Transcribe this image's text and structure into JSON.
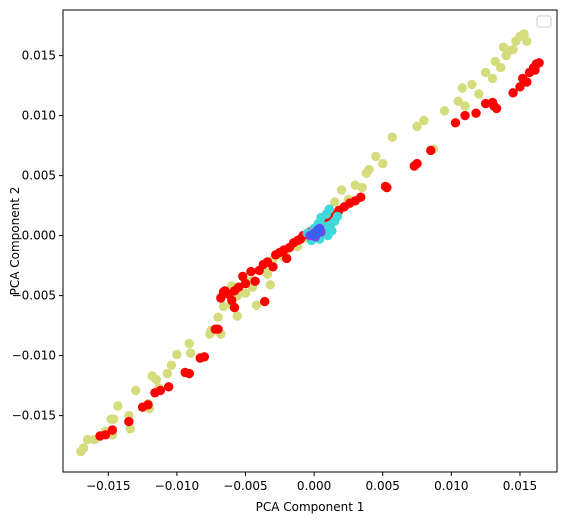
{
  "chart_data": {
    "type": "scatter",
    "xlabel": "PCA Component 1",
    "ylabel": "PCA Component 2",
    "xlim": [
      -0.0183,
      0.0177
    ],
    "ylim": [
      -0.0197,
      0.0188
    ],
    "grid": false,
    "legend": {
      "placement": "top-right",
      "entries": []
    },
    "xticks": [
      -0.015,
      -0.01,
      -0.005,
      0.0,
      0.005,
      0.01,
      0.015
    ],
    "xtick_labels": [
      "−0.015",
      "−0.010",
      "−0.005",
      "0.000",
      "0.005",
      "0.010",
      "0.015"
    ],
    "yticks": [
      -0.015,
      -0.01,
      -0.005,
      0.0,
      0.005,
      0.01,
      0.015
    ],
    "ytick_labels": [
      "−0.015",
      "−0.010",
      "−0.005",
      "0.000",
      "0.005",
      "0.010",
      "0.015"
    ],
    "series": [
      {
        "color": "#d4dc7c",
        "points": [
          [
            -0.017,
            -0.018
          ],
          [
            -0.0168,
            -0.0177
          ],
          [
            -0.0165,
            -0.017
          ],
          [
            -0.016,
            -0.017
          ],
          [
            -0.0152,
            -0.0163
          ],
          [
            -0.0148,
            -0.0153
          ],
          [
            -0.0146,
            -0.0153
          ],
          [
            -0.0147,
            -0.0166
          ],
          [
            -0.0143,
            -0.0142
          ],
          [
            -0.0135,
            -0.015
          ],
          [
            -0.0134,
            -0.0161
          ],
          [
            -0.013,
            -0.0129
          ],
          [
            -0.0121,
            -0.014
          ],
          [
            -0.012,
            -0.0144
          ],
          [
            -0.0118,
            -0.0117
          ],
          [
            -0.0115,
            -0.012
          ],
          [
            -0.0113,
            -0.0127
          ],
          [
            -0.0107,
            -0.0115
          ],
          [
            -0.0104,
            -0.0108
          ],
          [
            -0.01,
            -0.0099
          ],
          [
            -0.0091,
            -0.009
          ],
          [
            -0.009,
            -0.0098
          ],
          [
            -0.0076,
            -0.0082
          ],
          [
            -0.0075,
            -0.0079
          ],
          [
            -0.007,
            -0.0068
          ],
          [
            -0.0068,
            -0.0082
          ],
          [
            -0.0066,
            -0.0059
          ],
          [
            -0.006,
            -0.0058
          ],
          [
            -0.006,
            -0.0042
          ],
          [
            -0.0058,
            -0.006
          ],
          [
            -0.0056,
            -0.005
          ],
          [
            -0.0056,
            -0.0067
          ],
          [
            -0.005,
            -0.0048
          ],
          [
            -0.0048,
            -0.004
          ],
          [
            -0.0046,
            -0.0038
          ],
          [
            -0.0045,
            -0.0043
          ],
          [
            -0.0042,
            -0.0058
          ],
          [
            -0.0036,
            -0.003
          ],
          [
            -0.0034,
            -0.0032
          ],
          [
            -0.0032,
            -0.0041
          ],
          [
            -0.003,
            -0.002
          ],
          [
            -0.0026,
            -0.0016
          ],
          [
            -0.0022,
            -0.0018
          ],
          [
            -0.002,
            -0.0012
          ],
          [
            -0.0015,
            -0.0008
          ],
          [
            -0.0012,
            -0.0009
          ],
          [
            -0.0005,
            -0.0002
          ],
          [
            0.0,
            0.0002
          ],
          [
            0.0005,
            0.0005
          ],
          [
            0.0008,
            0.0012
          ],
          [
            0.001,
            0.0014
          ],
          [
            0.0012,
            0.0017
          ],
          [
            0.0015,
            0.0028
          ],
          [
            0.0018,
            0.002
          ],
          [
            0.002,
            0.0038
          ],
          [
            0.0025,
            0.003
          ],
          [
            0.003,
            0.0042
          ],
          [
            0.0035,
            0.004
          ],
          [
            0.0038,
            0.0052
          ],
          [
            0.004,
            0.0055
          ],
          [
            0.0045,
            0.0066
          ],
          [
            0.005,
            0.006
          ],
          [
            0.0057,
            0.0082
          ],
          [
            0.0075,
            0.0091
          ],
          [
            0.008,
            0.0096
          ],
          [
            0.0087,
            0.0072
          ],
          [
            0.0095,
            0.0104
          ],
          [
            0.0105,
            0.0112
          ],
          [
            0.0108,
            0.0123
          ],
          [
            0.011,
            0.0108
          ],
          [
            0.0115,
            0.0126
          ],
          [
            0.012,
            0.0118
          ],
          [
            0.0125,
            0.0136
          ],
          [
            0.013,
            0.0131
          ],
          [
            0.0132,
            0.0145
          ],
          [
            0.0136,
            0.014
          ],
          [
            0.0138,
            0.0157
          ],
          [
            0.014,
            0.015
          ],
          [
            0.0142,
            0.0154
          ],
          [
            0.0145,
            0.0155
          ],
          [
            0.0147,
            0.0162
          ],
          [
            0.015,
            0.0166
          ],
          [
            0.0153,
            0.0168
          ],
          [
            0.0155,
            0.0162
          ]
        ]
      },
      {
        "color": "#ff0000",
        "points": [
          [
            -0.0156,
            -0.0167
          ],
          [
            -0.0152,
            -0.0166
          ],
          [
            -0.0147,
            -0.0162
          ],
          [
            -0.0135,
            -0.0155
          ],
          [
            -0.0125,
            -0.0143
          ],
          [
            -0.0121,
            -0.0141
          ],
          [
            -0.0116,
            -0.0131
          ],
          [
            -0.0112,
            -0.0129
          ],
          [
            -0.0106,
            -0.0126
          ],
          [
            -0.0094,
            -0.0114
          ],
          [
            -0.0091,
            -0.0115
          ],
          [
            -0.0083,
            -0.0102
          ],
          [
            -0.008,
            -0.0101
          ],
          [
            -0.0072,
            -0.0078
          ],
          [
            -0.007,
            -0.0078
          ],
          [
            -0.0068,
            -0.0052
          ],
          [
            -0.0066,
            -0.0047
          ],
          [
            -0.0065,
            -0.0046
          ],
          [
            -0.0062,
            -0.0049
          ],
          [
            -0.006,
            -0.0054
          ],
          [
            -0.0058,
            -0.0046
          ],
          [
            -0.0058,
            -0.006
          ],
          [
            -0.0055,
            -0.0043
          ],
          [
            -0.0052,
            -0.0034
          ],
          [
            -0.005,
            -0.004
          ],
          [
            -0.0046,
            -0.003
          ],
          [
            -0.0043,
            -0.0038
          ],
          [
            -0.004,
            -0.0029
          ],
          [
            -0.0037,
            -0.0024
          ],
          [
            -0.0036,
            -0.0055
          ],
          [
            -0.0034,
            -0.0022
          ],
          [
            -0.003,
            -0.0026
          ],
          [
            -0.0028,
            -0.0016
          ],
          [
            -0.0025,
            -0.0014
          ],
          [
            -0.0022,
            -0.0012
          ],
          [
            -0.002,
            -0.0019
          ],
          [
            -0.0018,
            -0.001
          ],
          [
            -0.0015,
            -0.0006
          ],
          [
            -0.0012,
            -0.0004
          ],
          [
            -0.001,
            -0.0003
          ],
          [
            -0.0008,
            0.0
          ],
          [
            -0.0005,
            0.0001
          ],
          [
            -0.0003,
            0.0003
          ],
          [
            0.0,
            0.0005
          ],
          [
            0.0003,
            0.0008
          ],
          [
            0.0006,
            0.0011
          ],
          [
            0.001,
            0.0013
          ],
          [
            0.0014,
            0.0017
          ],
          [
            0.0018,
            0.0021
          ],
          [
            0.0022,
            0.0024
          ],
          [
            0.0026,
            0.0027
          ],
          [
            0.003,
            0.0029
          ],
          [
            0.0034,
            0.0032
          ],
          [
            0.0052,
            0.0041
          ],
          [
            0.0053,
            0.004
          ],
          [
            0.0073,
            0.0058
          ],
          [
            0.0075,
            0.006
          ],
          [
            0.0085,
            0.0071
          ],
          [
            0.0103,
            0.0094
          ],
          [
            0.011,
            0.01
          ],
          [
            0.0118,
            0.0102
          ],
          [
            0.0125,
            0.011
          ],
          [
            0.013,
            0.0111
          ],
          [
            0.0131,
            0.0108
          ],
          [
            0.0133,
            0.0106
          ],
          [
            0.0145,
            0.0119
          ],
          [
            0.015,
            0.0124
          ],
          [
            0.0152,
            0.0131
          ],
          [
            0.0155,
            0.0128
          ],
          [
            0.0157,
            0.0136
          ],
          [
            0.016,
            0.014
          ],
          [
            0.0161,
            0.0138
          ],
          [
            0.0162,
            0.0143
          ],
          [
            0.0164,
            0.0144
          ]
        ]
      },
      {
        "color": "#40d8d8",
        "points": [
          [
            -0.0005,
            0.0002
          ],
          [
            0.0,
            0.0006
          ],
          [
            0.0003,
            0.001
          ],
          [
            0.0005,
            0.0015
          ],
          [
            0.0007,
            0.0008
          ],
          [
            0.0009,
            0.0018
          ],
          [
            0.0011,
            0.0022
          ],
          [
            0.0012,
            0.0009
          ],
          [
            0.0013,
            0.0004
          ],
          [
            0.001,
            0.0
          ],
          [
            0.0015,
            0.0012
          ],
          [
            0.0017,
            0.0016
          ],
          [
            0.0004,
            -0.0003
          ],
          [
            0.0002,
            -0.0002
          ],
          [
            -0.0002,
            -0.0004
          ],
          [
            0.0008,
            0.0003
          ]
        ]
      },
      {
        "color": "#7a46e8",
        "points": [
          [
            -0.0003,
            0.0
          ],
          [
            0.0,
            0.0002
          ],
          [
            0.0002,
            0.0004
          ],
          [
            0.0004,
            0.0006
          ],
          [
            0.0001,
            -0.0001
          ],
          [
            0.0005,
            0.0003
          ]
        ]
      },
      {
        "color": "#3a60f0",
        "points": [
          [
            -0.0001,
            0.0001
          ],
          [
            0.0002,
            0.0002
          ],
          [
            0.0003,
            0.0005
          ]
        ]
      }
    ]
  }
}
